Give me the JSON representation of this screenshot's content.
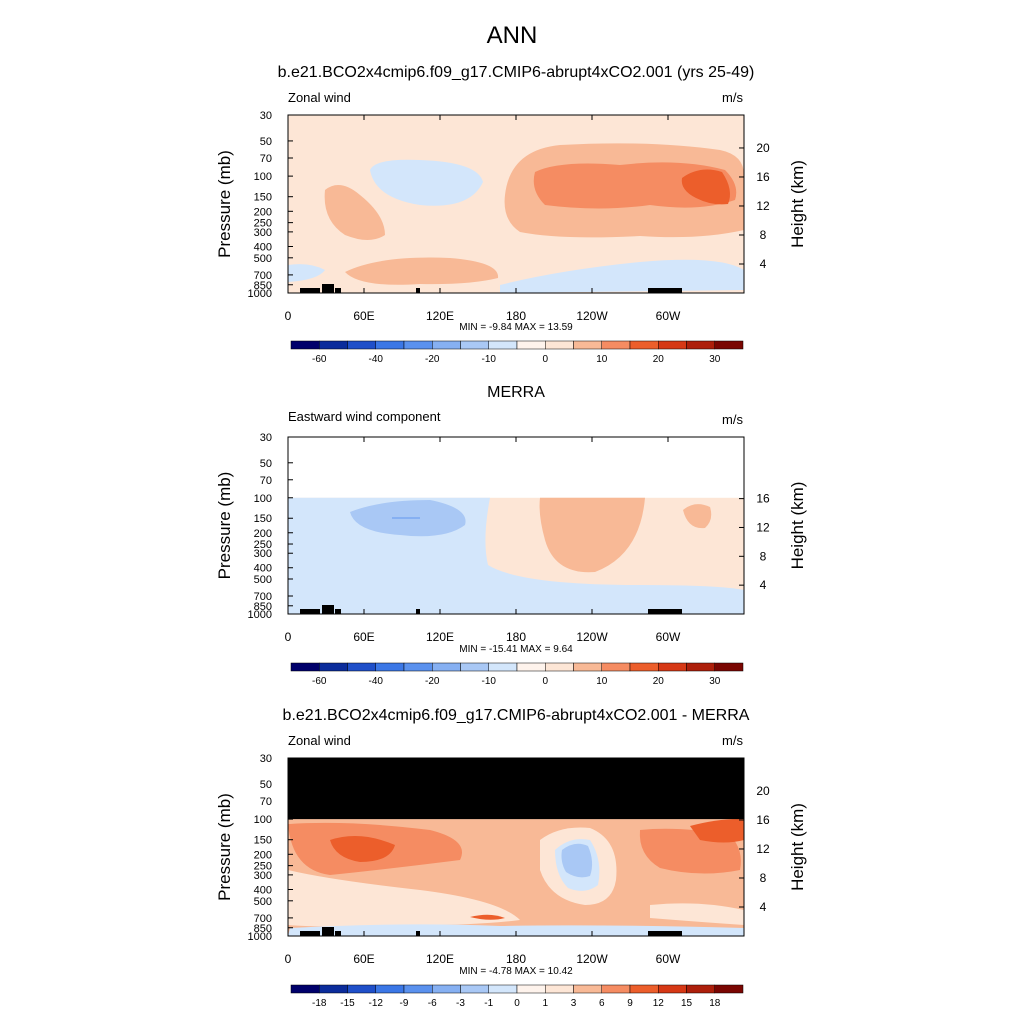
{
  "page": {
    "title": "ANN"
  },
  "colors": {
    "background": "#ffffff",
    "axis": "#000000",
    "neg_fill_light": "#d3e6fb",
    "neg_fill_mid": "#a9c8f5",
    "neg_fill_strong": "#86b0f2",
    "pos_fill_light": "#fde6d6",
    "pos_fill_mid": "#f8b996",
    "pos_fill_strong": "#f58c62",
    "pos_fill_deep": "#ec5e2b",
    "masked": "#000000"
  },
  "chart_data": [
    {
      "type": "heatmap",
      "title": "b.e21.BCO2x4cmip6.f09_g17.CMIP6-abrupt4xCO2.001 (yrs 25-49)",
      "left_label": "Zonal wind",
      "units": "m/s",
      "ylabel": "Pressure (mb)",
      "ylabel_right": "Height (km)",
      "x_ticks": [
        "0",
        "60E",
        "120E",
        "180",
        "120W",
        "60W"
      ],
      "y_ticks": [
        "30",
        "50",
        "70",
        "100",
        "150",
        "200",
        "250",
        "300",
        "400",
        "500",
        "700",
        "850",
        "1000"
      ],
      "right_ticks": [
        "20",
        "16",
        "12",
        "8",
        "4"
      ],
      "stats": "MIN =  -9.84  MAX =  13.59",
      "colorbar_labels": [
        "-60",
        "-40",
        "-20",
        "-10",
        "0",
        "10",
        "20",
        "30"
      ],
      "colorbar_colors": [
        "#00006b",
        "#0b2c9b",
        "#1f4fc9",
        "#3b77e6",
        "#5a91ee",
        "#86b0f2",
        "#a9c8f5",
        "#d3e6fb",
        "#fef3ec",
        "#fde6d6",
        "#f8b996",
        "#f58c62",
        "#ec5e2b",
        "#d63815",
        "#ad1f0b",
        "#7a0602"
      ],
      "value_range": [
        -9.84,
        13.59
      ]
    },
    {
      "type": "heatmap",
      "title": "MERRA",
      "left_label": "Eastward wind component",
      "units": "m/s",
      "ylabel": "Pressure (mb)",
      "ylabel_right": "Height (km)",
      "x_ticks": [
        "0",
        "60E",
        "120E",
        "180",
        "120W",
        "60W"
      ],
      "y_ticks": [
        "30",
        "50",
        "70",
        "100",
        "150",
        "200",
        "250",
        "300",
        "400",
        "500",
        "700",
        "850",
        "1000"
      ],
      "right_ticks": [
        "16",
        "12",
        "8",
        "4"
      ],
      "stats": "MIN = -15.41  MAX =   9.64",
      "colorbar_labels": [
        "-60",
        "-40",
        "-20",
        "-10",
        "0",
        "10",
        "20",
        "30"
      ],
      "colorbar_colors": [
        "#00006b",
        "#0b2c9b",
        "#1f4fc9",
        "#3b77e6",
        "#5a91ee",
        "#86b0f2",
        "#a9c8f5",
        "#d3e6fb",
        "#fef3ec",
        "#fde6d6",
        "#f8b996",
        "#f58c62",
        "#ec5e2b",
        "#d63815",
        "#ad1f0b",
        "#7a0602"
      ],
      "value_range": [
        -15.41,
        9.64
      ]
    },
    {
      "type": "heatmap",
      "title": "b.e21.BCO2x4cmip6.f09_g17.CMIP6-abrupt4xCO2.001 - MERRA",
      "left_label": "Zonal wind",
      "units": "m/s",
      "ylabel": "Pressure (mb)",
      "ylabel_right": "Height (km)",
      "x_ticks": [
        "0",
        "60E",
        "120E",
        "180",
        "120W",
        "60W"
      ],
      "y_ticks": [
        "30",
        "50",
        "70",
        "100",
        "150",
        "200",
        "250",
        "300",
        "400",
        "500",
        "700",
        "850",
        "1000"
      ],
      "right_ticks": [
        "20",
        "16",
        "12",
        "8",
        "4"
      ],
      "stats": "MIN =  -4.78  MAX =  10.42",
      "colorbar_labels": [
        "-18",
        "-15",
        "-12",
        "-9",
        "-6",
        "-3",
        "-1",
        "0",
        "1",
        "3",
        "6",
        "9",
        "12",
        "15",
        "18"
      ],
      "colorbar_colors": [
        "#00006b",
        "#0b2c9b",
        "#1f4fc9",
        "#3b77e6",
        "#5a91ee",
        "#86b0f2",
        "#a9c8f5",
        "#d3e6fb",
        "#fef3ec",
        "#fde6d6",
        "#f8b996",
        "#f58c62",
        "#ec5e2b",
        "#d63815",
        "#ad1f0b",
        "#7a0602"
      ],
      "value_range": [
        -4.78,
        10.42
      ]
    }
  ]
}
